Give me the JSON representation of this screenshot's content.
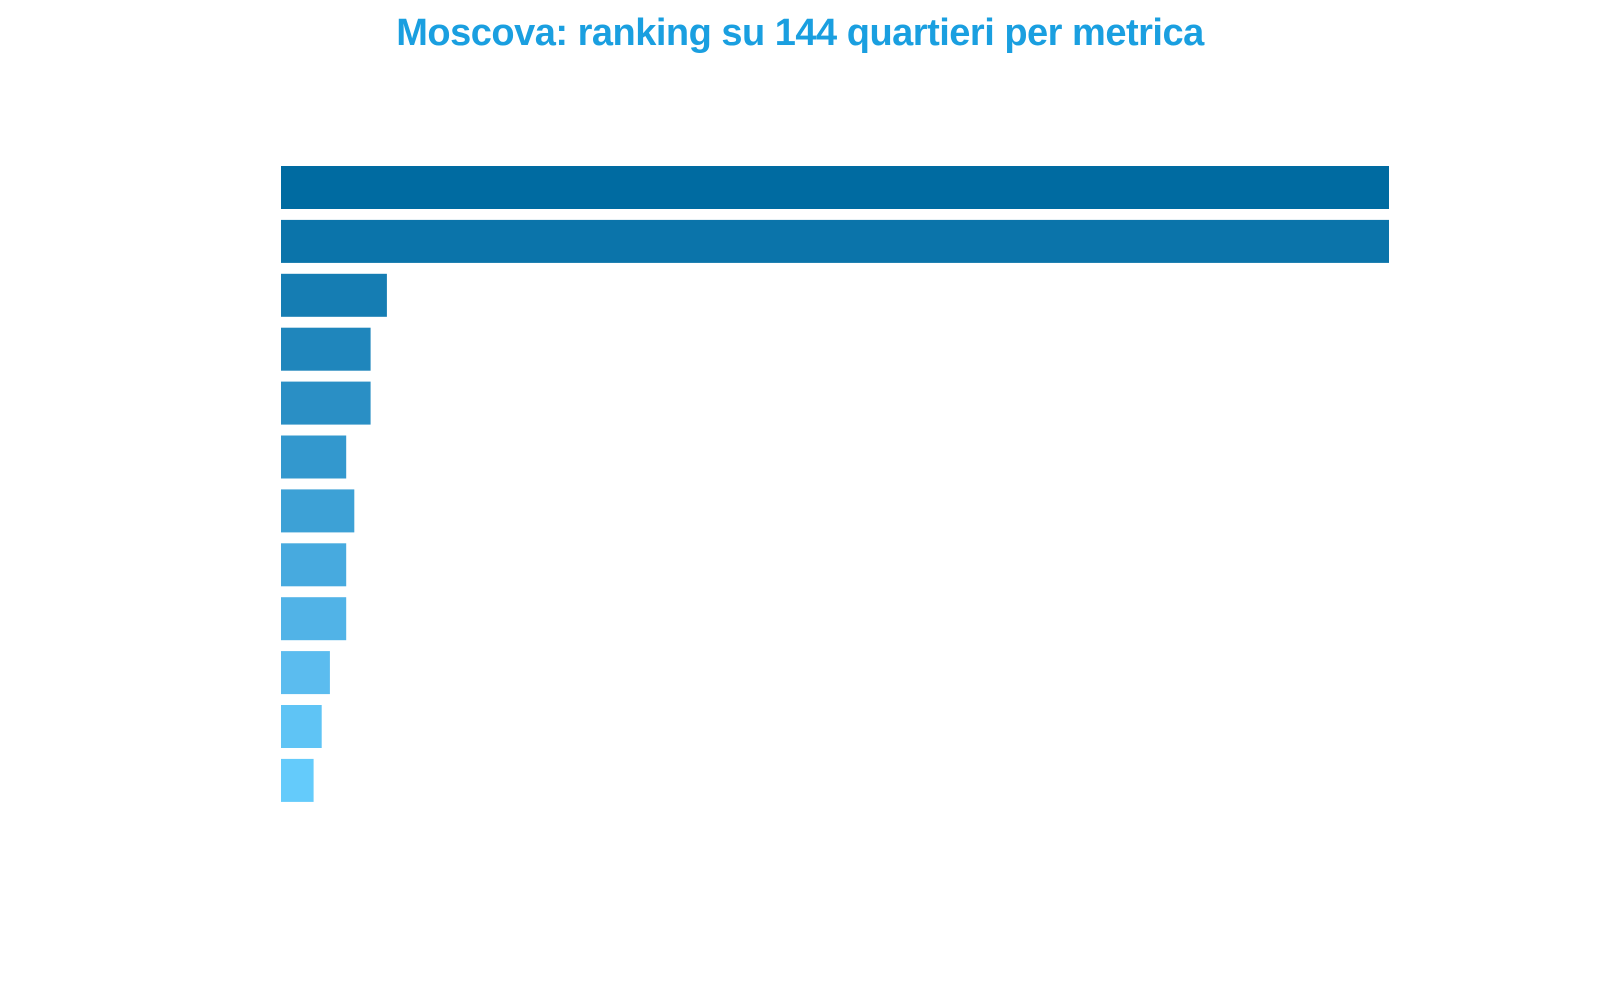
{
  "chart_data": {
    "type": "bar",
    "orientation": "horizontal",
    "title": "Moscova: ranking su 144 quartieri per metrica",
    "xlabel": "",
    "ylabel": "",
    "grid": false,
    "xlim": [
      0,
      136
    ],
    "values": [
      136,
      136,
      13,
      11,
      11,
      8,
      9,
      8,
      8,
      6,
      5,
      4
    ],
    "colors": [
      "#006ba1",
      "#0b74aa",
      "#157db3",
      "#1f86bc",
      "#2a8fc5",
      "#3398ce",
      "#3da1d6",
      "#47aadf",
      "#51b3e7",
      "#5bbcef",
      "#5fc4f5",
      "#64cbfb"
    ]
  }
}
